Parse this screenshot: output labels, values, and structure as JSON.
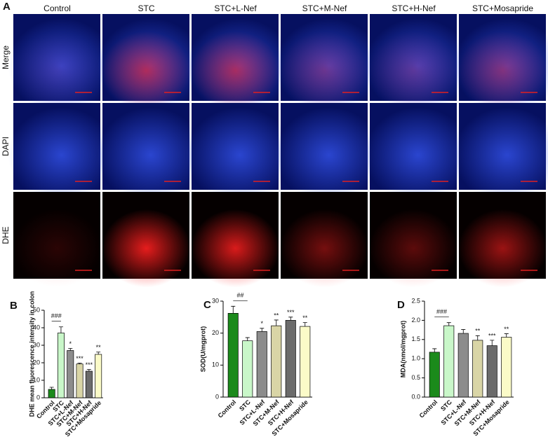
{
  "panel_a": {
    "letter": "A",
    "columns": [
      "Control",
      "STC",
      "STC+L-Nef",
      "STC+M-Nef",
      "STC+H-Nef",
      "STC+Mosapride"
    ],
    "rows": [
      "Merge",
      "DAPI",
      "DHE"
    ]
  },
  "chart_data": [
    {
      "type": "bar",
      "letter": "B",
      "ylabel": "DHE mean fluorescence intensity in colon",
      "categories": [
        "Control",
        "STC",
        "STC+L-Nef",
        "STC+M-Nef",
        "STC+H-Nef",
        "STC+Mosapride"
      ],
      "values": [
        4.8,
        37,
        27,
        19.3,
        15.2,
        24.8
      ],
      "errors": [
        1.2,
        3.5,
        1.2,
        0.5,
        1,
        1.3
      ],
      "colors": [
        "#1b8a1b",
        "#c9f7c9",
        "#8c8c8c",
        "#d9d5a6",
        "#6b6b6b",
        "#fbfbc8"
      ],
      "comparison_label": "###",
      "sig_labels": [
        null,
        null,
        "*",
        "***",
        "***",
        "**"
      ],
      "ylim": [
        0,
        50
      ],
      "yticks": [
        0,
        10,
        20,
        30,
        40,
        50
      ]
    },
    {
      "type": "bar",
      "letter": "C",
      "ylabel": "SOD(U/mgprot)",
      "categories": [
        "Control",
        "STC",
        "STC+L-Nef",
        "STC+M-Nef",
        "STC+H-Nef",
        "STC+Mosapride"
      ],
      "values": [
        26.2,
        17.6,
        20.5,
        22.3,
        24,
        22.1
      ],
      "errors": [
        2.2,
        1,
        1,
        1.8,
        1,
        1.2
      ],
      "colors": [
        "#1b8a1b",
        "#c9f7c9",
        "#8c8c8c",
        "#d9d5a6",
        "#6b6b6b",
        "#fbfbc8"
      ],
      "comparison_label": "##",
      "sig_labels": [
        null,
        null,
        "*",
        "**",
        "***",
        "**"
      ],
      "ylim": [
        0,
        30
      ],
      "yticks": [
        0,
        10,
        20,
        30
      ]
    },
    {
      "type": "bar",
      "letter": "D",
      "ylabel": "MDA(nmol/mgprot)",
      "categories": [
        "Control",
        "STC",
        "STC+L-Nef",
        "STC+M-Nef",
        "STC+H-Nef",
        "STC+Mosapride"
      ],
      "values": [
        1.17,
        1.86,
        1.66,
        1.48,
        1.34,
        1.56
      ],
      "errors": [
        0.09,
        0.08,
        0.1,
        0.12,
        0.14,
        0.09
      ],
      "colors": [
        "#1b8a1b",
        "#c9f7c9",
        "#8c8c8c",
        "#d9d5a6",
        "#6b6b6b",
        "#fbfbc8"
      ],
      "comparison_label": "###",
      "sig_labels": [
        null,
        null,
        null,
        "**",
        "***",
        "**"
      ],
      "ylim": [
        0,
        2.5
      ],
      "yticks": [
        {
          "value": 0,
          "label": "0.0"
        },
        {
          "value": 0.5,
          "label": "0.5"
        },
        {
          "value": 1,
          "label": "1.0"
        },
        {
          "value": 1.5,
          "label": "1.5"
        },
        {
          "value": 2,
          "label": "2.0"
        },
        {
          "value": 2.5,
          "label": "2.5"
        }
      ]
    }
  ]
}
